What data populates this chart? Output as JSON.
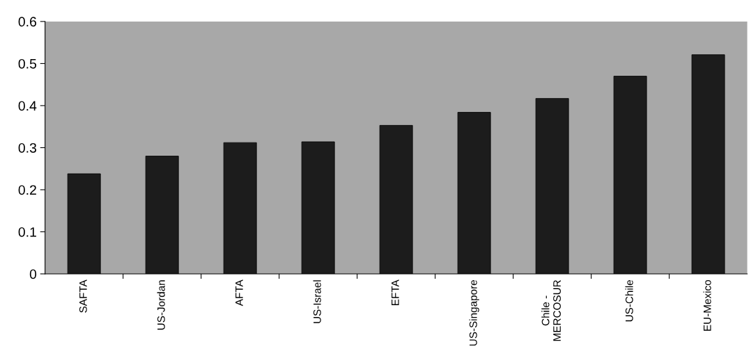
{
  "chart_data": {
    "type": "bar",
    "categories": [
      "SAFTA",
      "US-Jordan",
      "AFTA",
      "US-Israel",
      "EFTA",
      "US-Singapore",
      "Chile -\nMERCOSUR",
      "US-Chile",
      "EU-Mexico"
    ],
    "values": [
      0.238,
      0.28,
      0.312,
      0.314,
      0.353,
      0.384,
      0.417,
      0.47,
      0.521
    ],
    "color": "#1c1c1c",
    "ylim": [
      0,
      0.6
    ],
    "yticks": [
      0,
      0.1,
      0.2,
      0.3,
      0.4,
      0.5,
      0.6
    ],
    "grid": false
  }
}
